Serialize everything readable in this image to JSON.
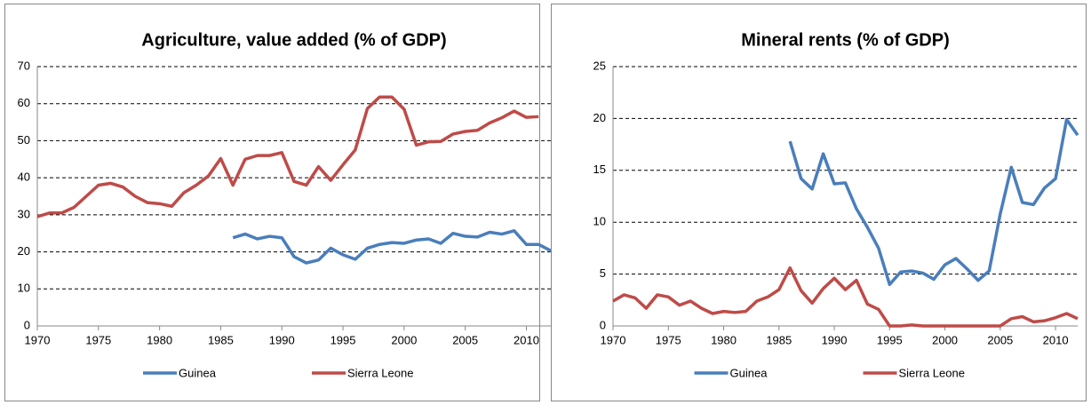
{
  "chart_data": [
    {
      "type": "line",
      "title": "Agriculture, value added (% of GDP)",
      "x": [
        1970,
        1971,
        1972,
        1973,
        1974,
        1975,
        1976,
        1977,
        1978,
        1979,
        1980,
        1981,
        1982,
        1983,
        1984,
        1985,
        1986,
        1987,
        1988,
        1989,
        1990,
        1991,
        1992,
        1993,
        1994,
        1995,
        1996,
        1997,
        1998,
        1999,
        2000,
        2001,
        2002,
        2003,
        2004,
        2005,
        2006,
        2007,
        2008,
        2009,
        2010,
        2011,
        2012
      ],
      "xlim": [
        1970,
        2012
      ],
      "xticks": [
        1970,
        1975,
        1980,
        1985,
        1990,
        1995,
        2000,
        2005,
        2010
      ],
      "ylim": [
        0,
        70
      ],
      "yticks": [
        0,
        10,
        20,
        30,
        40,
        50,
        60,
        70
      ],
      "grid": true,
      "legend": "bottom",
      "series": [
        {
          "name": "Guinea",
          "color": "#4a7ebb",
          "values": [
            null,
            null,
            null,
            null,
            null,
            null,
            null,
            null,
            null,
            null,
            null,
            null,
            null,
            null,
            null,
            null,
            23.8,
            24.8,
            23.5,
            24.2,
            23.8,
            18.7,
            17,
            17.8,
            21,
            19.2,
            18,
            21,
            22,
            22.5,
            22.3,
            23.2,
            23.5,
            22.3,
            25,
            24.2,
            24,
            25.3,
            24.8,
            25.7,
            22,
            22,
            20.3
          ]
        },
        {
          "name": "Sierra Leone",
          "color": "#be4b48",
          "values": [
            29.5,
            30.5,
            30.5,
            32,
            35,
            38,
            38.5,
            37.5,
            35,
            33.3,
            33,
            32.3,
            36,
            38,
            40.5,
            45.2,
            38,
            45,
            46,
            46,
            46.8,
            39,
            38,
            43,
            39.3,
            43.5,
            47.5,
            58.7,
            61.8,
            61.8,
            58.5,
            48.8,
            49.7,
            49.8,
            51.8,
            52.5,
            52.8,
            54.8,
            56.2,
            58,
            56.3,
            56.5,
            null
          ]
        }
      ]
    },
    {
      "type": "line",
      "title": "Mineral rents (% of GDP)",
      "x": [
        1970,
        1971,
        1972,
        1973,
        1974,
        1975,
        1976,
        1977,
        1978,
        1979,
        1980,
        1981,
        1982,
        1983,
        1984,
        1985,
        1986,
        1987,
        1988,
        1989,
        1990,
        1991,
        1992,
        1993,
        1994,
        1995,
        1996,
        1997,
        1998,
        1999,
        2000,
        2001,
        2002,
        2003,
        2004,
        2005,
        2006,
        2007,
        2008,
        2009,
        2010,
        2011,
        2012
      ],
      "xlim": [
        1970,
        2012
      ],
      "xticks": [
        1970,
        1975,
        1980,
        1985,
        1990,
        1995,
        2000,
        2005,
        2010
      ],
      "ylim": [
        0,
        25
      ],
      "yticks": [
        0,
        5,
        10,
        15,
        20,
        25
      ],
      "grid": true,
      "legend": "bottom",
      "series": [
        {
          "name": "Guinea",
          "color": "#4a7ebb",
          "values": [
            null,
            null,
            null,
            null,
            null,
            null,
            null,
            null,
            null,
            null,
            null,
            null,
            null,
            null,
            null,
            null,
            17.8,
            14.2,
            13.2,
            16.6,
            13.7,
            13.8,
            11.3,
            9.5,
            7.5,
            4,
            5.2,
            5.3,
            5.1,
            4.5,
            5.9,
            6.5,
            5.5,
            4.4,
            5.3,
            10.8,
            15.3,
            11.9,
            11.7,
            13.3,
            14.2,
            19.9,
            18.4
          ]
        },
        {
          "name": "Sierra Leone",
          "color": "#be4b48",
          "values": [
            2.4,
            3,
            2.7,
            1.7,
            3,
            2.8,
            2,
            2.4,
            1.7,
            1.2,
            1.4,
            1.3,
            1.4,
            2.4,
            2.8,
            3.5,
            5.6,
            3.4,
            2.2,
            3.6,
            4.6,
            3.5,
            4.4,
            2.1,
            1.6,
            0,
            0,
            0.1,
            0,
            0,
            0,
            0,
            0,
            0,
            0,
            0,
            0.7,
            0.9,
            0.4,
            0.5,
            0.8,
            1.2,
            0.7
          ]
        }
      ]
    }
  ]
}
